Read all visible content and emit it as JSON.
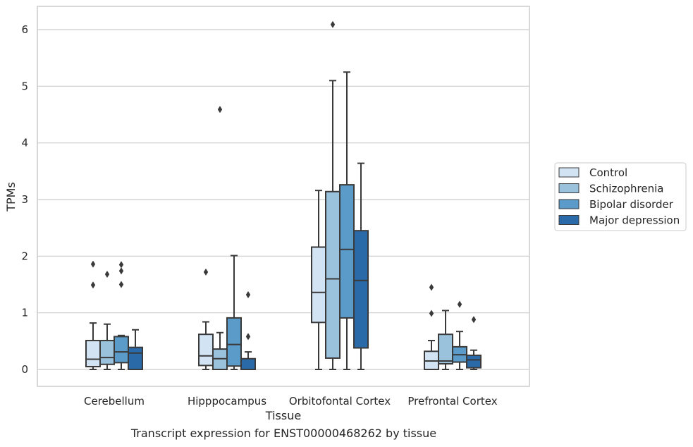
{
  "caption": "Transcript expression for ENST00000468262 by tissue",
  "chart_data": {
    "type": "box",
    "title": "",
    "xlabel": "Tissue",
    "ylabel": "TPMs",
    "ylim": [
      -0.3,
      6.4
    ],
    "yticks": [
      0,
      1,
      2,
      3,
      4,
      5,
      6
    ],
    "grid": "horizontal",
    "legend_position": "right",
    "categories": [
      "Cerebellum",
      "Hipppocampus",
      "Orbitofontal Cortex",
      "Prefrontal Cortex"
    ],
    "series": [
      {
        "name": "Control",
        "color": "#d2e3f3",
        "boxes": [
          {
            "min": 0.0,
            "q1": 0.05,
            "median": 0.18,
            "q3": 0.51,
            "max": 0.82,
            "outliers": [
              1.86,
              1.49
            ]
          },
          {
            "min": 0.0,
            "q1": 0.07,
            "median": 0.24,
            "q3": 0.62,
            "max": 0.84,
            "outliers": [
              1.72
            ]
          },
          {
            "min": 0.0,
            "q1": 0.83,
            "median": 1.36,
            "q3": 2.16,
            "max": 3.16,
            "outliers": []
          },
          {
            "min": 0.0,
            "q1": 0.0,
            "median": 0.15,
            "q3": 0.32,
            "max": 0.51,
            "outliers": [
              1.45,
              0.99
            ]
          }
        ]
      },
      {
        "name": "Schizophrenia",
        "color": "#9ac2dc",
        "boxes": [
          {
            "min": 0.0,
            "q1": 0.09,
            "median": 0.21,
            "q3": 0.51,
            "max": 0.8,
            "outliers": [
              1.68
            ]
          },
          {
            "min": 0.0,
            "q1": 0.0,
            "median": 0.19,
            "q3": 0.36,
            "max": 0.65,
            "outliers": [
              4.59
            ]
          },
          {
            "min": 0.0,
            "q1": 0.2,
            "median": 1.6,
            "q3": 3.14,
            "max": 5.1,
            "outliers": [
              6.09
            ]
          },
          {
            "min": 0.0,
            "q1": 0.1,
            "median": 0.15,
            "q3": 0.62,
            "max": 1.04,
            "outliers": []
          }
        ]
      },
      {
        "name": "Bipolar disorder",
        "color": "#5a9bc9",
        "boxes": [
          {
            "min": 0.0,
            "q1": 0.12,
            "median": 0.31,
            "q3": 0.58,
            "max": 0.6,
            "outliers": [
              1.85,
              1.74,
              1.5
            ]
          },
          {
            "min": 0.0,
            "q1": 0.06,
            "median": 0.44,
            "q3": 0.91,
            "max": 2.01,
            "outliers": []
          },
          {
            "min": 0.0,
            "q1": 0.91,
            "median": 2.12,
            "q3": 3.26,
            "max": 5.25,
            "outliers": []
          },
          {
            "min": 0.0,
            "q1": 0.13,
            "median": 0.26,
            "q3": 0.4,
            "max": 0.67,
            "outliers": [
              1.15
            ]
          }
        ]
      },
      {
        "name": "Major depression",
        "color": "#2b6aa9",
        "boxes": [
          {
            "min": 0.0,
            "q1": 0.0,
            "median": 0.29,
            "q3": 0.39,
            "max": 0.7,
            "outliers": []
          },
          {
            "min": 0.0,
            "q1": 0.0,
            "median": 0.0,
            "q3": 0.19,
            "max": 0.31,
            "outliers": [
              1.32,
              0.58
            ]
          },
          {
            "min": 0.0,
            "q1": 0.38,
            "median": 1.57,
            "q3": 2.45,
            "max": 3.64,
            "outliers": []
          },
          {
            "min": 0.0,
            "q1": 0.03,
            "median": 0.17,
            "q3": 0.25,
            "max": 0.34,
            "outliers": [
              0.88
            ]
          }
        ]
      }
    ]
  }
}
